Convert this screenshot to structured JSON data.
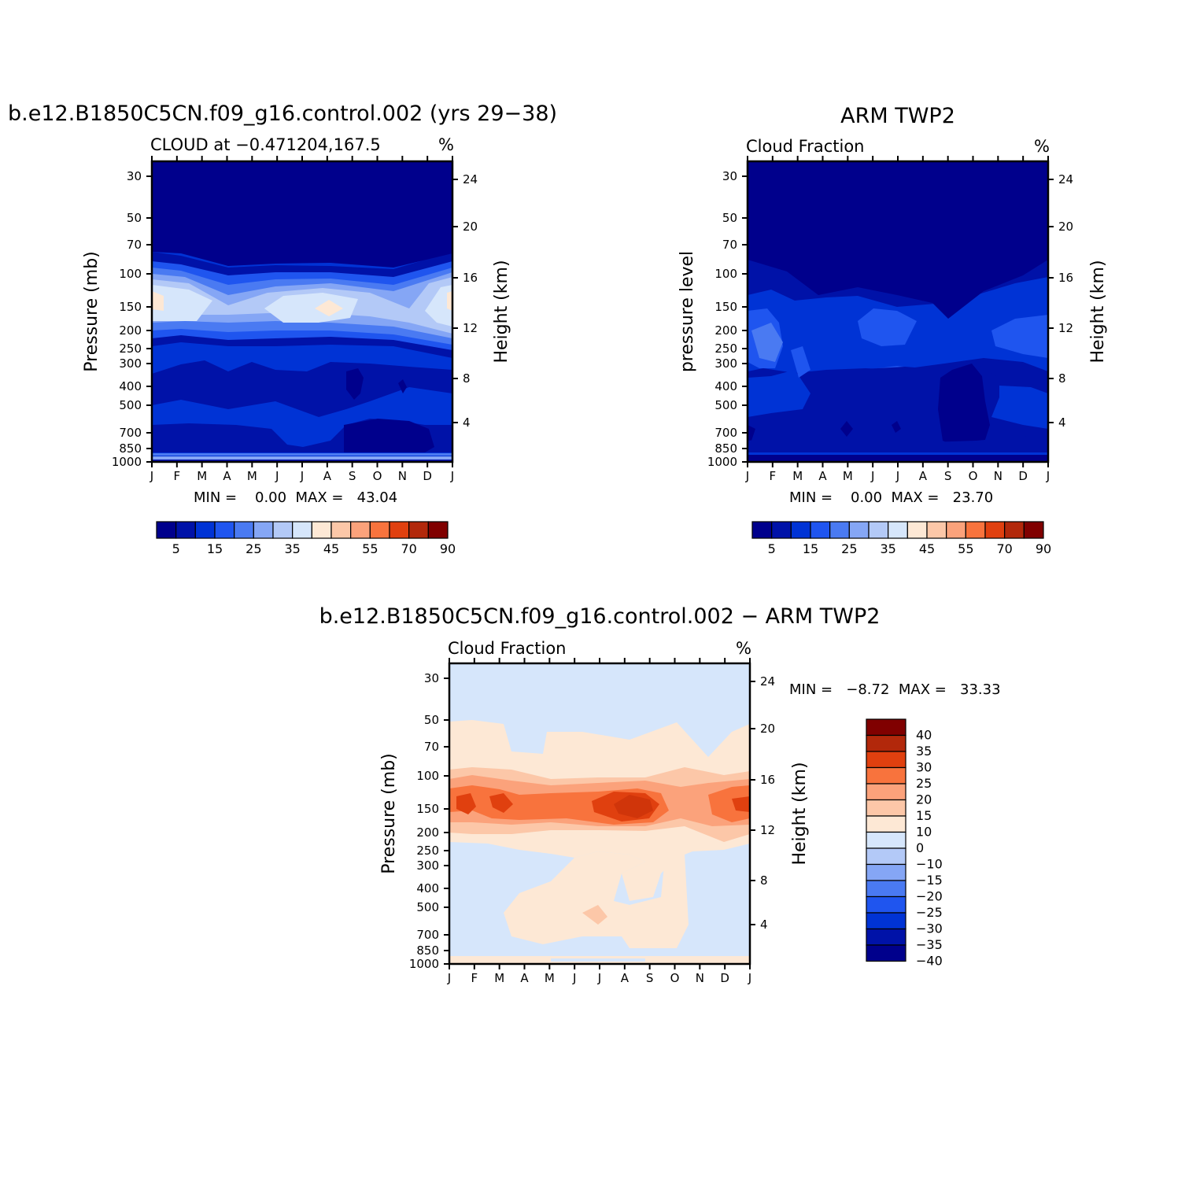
{
  "colors": {
    "cloud_levels": [
      "#00008c",
      "#0012a8",
      "#0033d5",
      "#1f55ef",
      "#4a7af2",
      "#85a6f5",
      "#b3c9f7",
      "#d6e6fb",
      "#fde8d5",
      "#fcc7a8",
      "#fba27b",
      "#f8733d",
      "#e0400f",
      "#b2280b",
      "#800000"
    ],
    "diff_levels": [
      "#00008c",
      "#0012a8",
      "#0033d5",
      "#1f55ef",
      "#4a7af2",
      "#85a6f5",
      "#b3c9f7",
      "#d6e6fb",
      "#fde8d5",
      "#fcc7a8",
      "#fba27b",
      "#f8733d",
      "#e0400f",
      "#b2280b",
      "#800000"
    ]
  },
  "chart_data": [
    {
      "type": "heatmap",
      "title": "b.e12.B1850C5CN.f09_g16.control.002 (yrs 29−38)",
      "subtitle_left": "CLOUD at −0.471204,167.5",
      "units": "%",
      "ylabel": "Pressure (mb)",
      "ylabel_right": "Height (km)",
      "x_ticks": [
        "J",
        "F",
        "M",
        "A",
        "M",
        "J",
        "J",
        "A",
        "S",
        "O",
        "N",
        "D",
        "J"
      ],
      "y_ticks": [
        "30",
        "50",
        "70",
        "100",
        "150",
        "200",
        "250",
        "300",
        "400",
        "500",
        "700",
        "850",
        "1000"
      ],
      "y_ticks_right": [
        "24",
        "20",
        "16",
        "12",
        "8",
        "4"
      ],
      "minmax_text": "MIN =    0.00  MAX =   43.04",
      "min": 0.0,
      "max": 43.04,
      "colorbar_labels": [
        "5",
        "15",
        "25",
        "35",
        "45",
        "55",
        "70",
        "90"
      ]
    },
    {
      "type": "heatmap",
      "title": "ARM TWP2",
      "subtitle_left": "Cloud Fraction",
      "units": "%",
      "ylabel": "pressure level",
      "ylabel_right": "Height (km)",
      "x_ticks": [
        "J",
        "F",
        "M",
        "A",
        "M",
        "J",
        "J",
        "A",
        "S",
        "O",
        "N",
        "D",
        "J"
      ],
      "y_ticks": [
        "30",
        "50",
        "70",
        "100",
        "150",
        "200",
        "250",
        "300",
        "400",
        "500",
        "700",
        "850",
        "1000"
      ],
      "y_ticks_right": [
        "24",
        "20",
        "16",
        "12",
        "8",
        "4"
      ],
      "minmax_text": "MIN =    0.00  MAX =   23.70",
      "min": 0.0,
      "max": 23.7,
      "colorbar_labels": [
        "5",
        "15",
        "25",
        "35",
        "45",
        "55",
        "70",
        "90"
      ]
    },
    {
      "type": "heatmap",
      "title": "b.e12.B1850C5CN.f09_g16.control.002 − ARM TWP2",
      "subtitle_left": "Cloud Fraction",
      "units": "%",
      "ylabel": "Pressure (mb)",
      "ylabel_right": "Height (km)",
      "x_ticks": [
        "J",
        "F",
        "M",
        "A",
        "M",
        "J",
        "J",
        "A",
        "S",
        "O",
        "N",
        "D",
        "J"
      ],
      "y_ticks": [
        "30",
        "50",
        "70",
        "100",
        "150",
        "200",
        "250",
        "300",
        "400",
        "500",
        "700",
        "850",
        "1000"
      ],
      "y_ticks_right": [
        "24",
        "20",
        "16",
        "12",
        "8",
        "4"
      ],
      "minmax_text": "MIN =   −8.72  MAX =   33.33",
      "min": -8.72,
      "max": 33.33,
      "colorbar_labels": [
        "40",
        "35",
        "30",
        "25",
        "20",
        "15",
        "10",
        "0",
        "−10",
        "−15",
        "−20",
        "−25",
        "−30",
        "−35",
        "−40"
      ]
    }
  ]
}
